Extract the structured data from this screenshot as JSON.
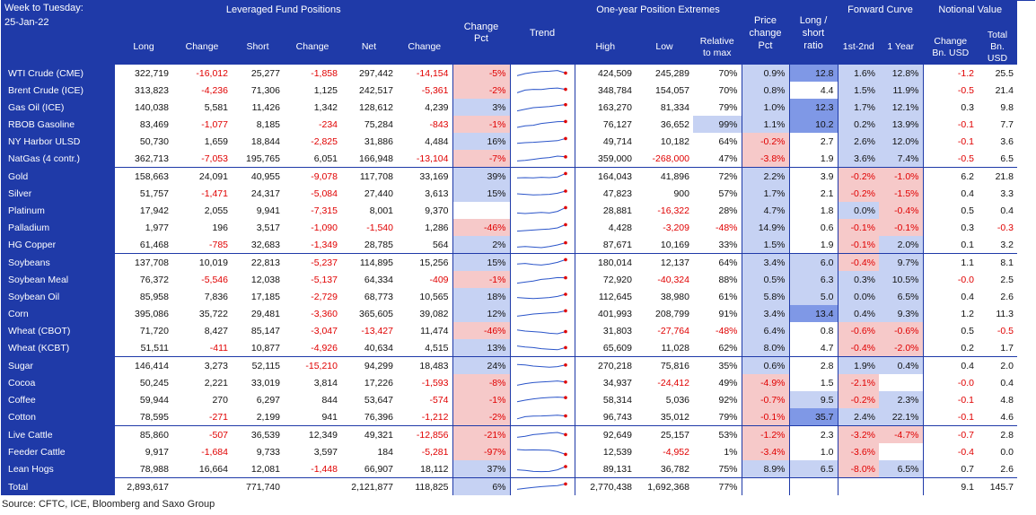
{
  "header": {
    "week_label": "Week to Tuesday:",
    "date": "25-Jan-22",
    "group_leveraged": "Leveraged Fund Positions",
    "group_extremes": "One-year Position Extremes",
    "group_price": "Price change Pct",
    "group_ratio": "Long / short ratio",
    "group_curve": "Forward Curve",
    "group_notional": "Notional Value",
    "col_long": "Long",
    "col_change": "Change",
    "col_short": "Short",
    "col_change2": "Change",
    "col_net": "Net",
    "col_change3": "Change",
    "col_change_pct": "Change Pct",
    "col_trend": "Trend",
    "col_high": "High",
    "col_low": "Low",
    "col_relmax": "Relative to max",
    "col_curve1": "1st-2nd",
    "col_curve2": "1 Year",
    "col_nchange": "Change Bn. USD",
    "col_ntotal": "Total Bn. USD"
  },
  "chart_data": {
    "type": "table",
    "columns": [
      "Commodity",
      "Long",
      "Change",
      "Short",
      "Change",
      "Net",
      "Change",
      "Change Pct",
      "Trend",
      "High",
      "Low",
      "Relative to max",
      "Price change Pct",
      "Long / short ratio",
      "1st-2nd",
      "1 Year",
      "Change Bn. USD",
      "Total Bn. USD"
    ],
    "rows": [
      {
        "name": "WTI Crude (CME)",
        "long": "322,719",
        "chg_long": "-16,012",
        "short": "25,277",
        "chg_short": "-1,858",
        "net": "297,442",
        "chg_net": "-14,154",
        "chg_pct": "-5%",
        "high": "424,509",
        "low": "245,289",
        "rel": "70%",
        "price": "0.9%",
        "ratio": "12.8",
        "c12": "1.6%",
        "c1y": "12.8%",
        "nchg": "-1.2",
        "ntot": "25.5",
        "trend": [
          0.3,
          0.5,
          0.62,
          0.68,
          0.72,
          0.78,
          0.55
        ],
        "hl": {
          "chg_pct": "pink",
          "price": "blue",
          "ratio": "dblue",
          "c12": "blue",
          "c1y": "blue"
        }
      },
      {
        "name": "Brent Crude (ICE)",
        "long": "313,823",
        "chg_long": "-4,236",
        "short": "71,306",
        "chg_short": "1,125",
        "net": "242,517",
        "chg_net": "-5,361",
        "chg_pct": "-2%",
        "high": "348,784",
        "low": "154,057",
        "rel": "70%",
        "price": "0.8%",
        "ratio": "4.4",
        "c12": "1.5%",
        "c1y": "11.9%",
        "nchg": "-0.5",
        "ntot": "21.4",
        "trend": [
          0.3,
          0.55,
          0.62,
          0.6,
          0.7,
          0.74,
          0.62
        ],
        "hl": {
          "chg_pct": "pink",
          "price": "blue",
          "c12": "blue",
          "c1y": "blue"
        }
      },
      {
        "name": "Gas Oil (ICE)",
        "long": "140,038",
        "chg_long": "5,581",
        "short": "11,426",
        "chg_short": "1,342",
        "net": "128,612",
        "chg_net": "4,239",
        "chg_pct": "3%",
        "high": "163,270",
        "low": "81,334",
        "rel": "79%",
        "price": "1.0%",
        "ratio": "12.3",
        "c12": "1.7%",
        "c1y": "12.1%",
        "nchg": "0.3",
        "ntot": "9.8",
        "trend": [
          0.2,
          0.35,
          0.5,
          0.55,
          0.6,
          0.7,
          0.78
        ],
        "hl": {
          "chg_pct": "blue",
          "price": "blue",
          "ratio": "dblue",
          "c12": "blue",
          "c1y": "blue"
        }
      },
      {
        "name": "RBOB Gasoline",
        "long": "83,469",
        "chg_long": "-1,077",
        "short": "8,185",
        "chg_short": "-234",
        "net": "75,284",
        "chg_net": "-843",
        "chg_pct": "-1%",
        "high": "76,127",
        "low": "36,652",
        "rel": "99%",
        "price": "1.1%",
        "ratio": "10.2",
        "c12": "0.2%",
        "c1y": "13.9%",
        "nchg": "-0.1",
        "ntot": "7.7",
        "trend": [
          0.25,
          0.4,
          0.45,
          0.62,
          0.7,
          0.78,
          0.8
        ],
        "hl": {
          "chg_pct": "pink",
          "rel": "blue",
          "price": "blue",
          "ratio": "dblue",
          "c12": "blue",
          "c1y": "blue"
        }
      },
      {
        "name": "NY Harbor ULSD",
        "long": "50,730",
        "chg_long": "1,659",
        "short": "18,844",
        "chg_short": "-2,825",
        "net": "31,886",
        "chg_net": "4,484",
        "chg_pct": "16%",
        "high": "49,714",
        "low": "10,182",
        "rel": "64%",
        "price": "-0.2%",
        "ratio": "2.7",
        "c12": "2.6%",
        "c1y": "12.0%",
        "nchg": "-0.1",
        "ntot": "3.6",
        "trend": [
          0.35,
          0.42,
          0.45,
          0.5,
          0.55,
          0.6,
          0.8
        ],
        "hl": {
          "chg_pct": "blue",
          "price": "pink",
          "c12": "blue",
          "c1y": "blue"
        }
      },
      {
        "name": "NatGas (4 contr.)",
        "long": "362,713",
        "chg_long": "-7,053",
        "short": "195,765",
        "chg_short": "6,051",
        "net": "166,948",
        "chg_net": "-13,104",
        "chg_pct": "-7%",
        "high": "359,000",
        "low": "-268,000",
        "rel": "47%",
        "price": "-3.8%",
        "ratio": "1.9",
        "c12": "3.6%",
        "c1y": "7.4%",
        "nchg": "-0.5",
        "ntot": "6.5",
        "trend": [
          0.3,
          0.35,
          0.45,
          0.55,
          0.62,
          0.75,
          0.68
        ],
        "hl": {
          "chg_pct": "pink",
          "price": "pink",
          "c12": "blue",
          "c1y": "blue"
        }
      },
      {
        "name": "Gold",
        "long": "158,663",
        "chg_long": "24,091",
        "short": "40,955",
        "chg_short": "-9,078",
        "net": "117,708",
        "chg_net": "33,169",
        "chg_pct": "39%",
        "high": "164,043",
        "low": "41,896",
        "rel": "72%",
        "price": "2.2%",
        "ratio": "3.9",
        "c12": "-0.2%",
        "c1y": "-1.0%",
        "nchg": "6.2",
        "ntot": "21.8",
        "trend": [
          0.4,
          0.42,
          0.4,
          0.45,
          0.42,
          0.48,
          0.8
        ],
        "hl": {
          "chg_pct": "blue",
          "price": "blue",
          "c12": "pink",
          "c1y": "pink"
        },
        "group_start": true
      },
      {
        "name": "Silver",
        "long": "51,757",
        "chg_long": "-1,471",
        "short": "24,317",
        "chg_short": "-5,084",
        "net": "27,440",
        "chg_net": "3,613",
        "chg_pct": "15%",
        "high": "47,823",
        "low": "900",
        "rel": "57%",
        "price": "1.7%",
        "ratio": "2.1",
        "c12": "-0.2%",
        "c1y": "-1.5%",
        "nchg": "0.4",
        "ntot": "3.3",
        "trend": [
          0.5,
          0.45,
          0.4,
          0.42,
          0.45,
          0.55,
          0.75
        ],
        "hl": {
          "chg_pct": "blue",
          "price": "blue",
          "c12": "pink",
          "c1y": "pink"
        }
      },
      {
        "name": "Platinum",
        "long": "17,942",
        "chg_long": "2,055",
        "short": "9,941",
        "chg_short": "-7,315",
        "net": "8,001",
        "chg_net": "9,370",
        "chg_pct": "",
        "high": "28,881",
        "low": "-16,322",
        "rel": "28%",
        "price": "4.7%",
        "ratio": "1.8",
        "c12": "0.0%",
        "c1y": "-0.4%",
        "nchg": "0.5",
        "ntot": "0.4",
        "trend": [
          0.3,
          0.25,
          0.3,
          0.35,
          0.3,
          0.45,
          0.8
        ],
        "hl": {
          "price": "blue",
          "c12": "blue",
          "c1y": "pink"
        }
      },
      {
        "name": "Palladium",
        "long": "1,977",
        "chg_long": "196",
        "short": "3,517",
        "chg_short": "-1,090",
        "net": "-1,540",
        "chg_net": "1,286",
        "chg_pct": "-46%",
        "high": "4,428",
        "low": "-3,209",
        "rel": "-48%",
        "price": "14.9%",
        "ratio": "0.6",
        "c12": "-0.1%",
        "c1y": "-0.1%",
        "nchg": "0.3",
        "ntot": "-0.3",
        "trend": [
          0.2,
          0.25,
          0.3,
          0.35,
          0.4,
          0.5,
          0.8
        ],
        "hl": {
          "chg_pct": "pink",
          "price": "blue",
          "c12": "pink",
          "c1y": "pink"
        }
      },
      {
        "name": "HG Copper",
        "long": "61,468",
        "chg_long": "-785",
        "short": "32,683",
        "chg_short": "-1,349",
        "net": "28,785",
        "chg_net": "564",
        "chg_pct": "2%",
        "high": "87,671",
        "low": "10,169",
        "rel": "33%",
        "price": "1.5%",
        "ratio": "1.9",
        "c12": "-0.1%",
        "c1y": "2.0%",
        "nchg": "0.1",
        "ntot": "3.2",
        "trend": [
          0.3,
          0.35,
          0.3,
          0.25,
          0.35,
          0.5,
          0.7
        ],
        "hl": {
          "chg_pct": "blue",
          "price": "blue",
          "c12": "pink",
          "c1y": "blue"
        }
      },
      {
        "name": "Soybeans",
        "long": "137,708",
        "chg_long": "10,019",
        "short": "22,813",
        "chg_short": "-5,237",
        "net": "114,895",
        "chg_net": "15,256",
        "chg_pct": "15%",
        "high": "180,014",
        "low": "12,137",
        "rel": "64%",
        "price": "3.4%",
        "ratio": "6.0",
        "c12": "-0.4%",
        "c1y": "9.7%",
        "nchg": "1.1",
        "ntot": "8.1",
        "trend": [
          0.4,
          0.45,
          0.35,
          0.3,
          0.4,
          0.55,
          0.8
        ],
        "hl": {
          "chg_pct": "blue",
          "price": "blue",
          "ratio": "blue",
          "c12": "pink",
          "c1y": "blue"
        },
        "group_start": true
      },
      {
        "name": "Soybean Meal",
        "long": "76,372",
        "chg_long": "-5,546",
        "short": "12,038",
        "chg_short": "-5,137",
        "net": "64,334",
        "chg_net": "-409",
        "chg_pct": "-1%",
        "high": "72,920",
        "low": "-40,324",
        "rel": "88%",
        "price": "0.5%",
        "ratio": "6.3",
        "c12": "0.3%",
        "c1y": "10.5%",
        "nchg": "-0.0",
        "ntot": "2.5",
        "trend": [
          0.2,
          0.3,
          0.4,
          0.55,
          0.62,
          0.72,
          0.7
        ],
        "hl": {
          "chg_pct": "pink",
          "price": "blue",
          "ratio": "blue",
          "c12": "blue",
          "c1y": "blue"
        }
      },
      {
        "name": "Soybean Oil",
        "long": "85,958",
        "chg_long": "7,836",
        "short": "17,185",
        "chg_short": "-2,729",
        "net": "68,773",
        "chg_net": "10,565",
        "chg_pct": "18%",
        "high": "112,645",
        "low": "38,980",
        "rel": "61%",
        "price": "5.8%",
        "ratio": "5.0",
        "c12": "0.0%",
        "c1y": "6.5%",
        "nchg": "0.4",
        "ntot": "2.6",
        "trend": [
          0.45,
          0.4,
          0.35,
          0.4,
          0.45,
          0.55,
          0.75
        ],
        "hl": {
          "chg_pct": "blue",
          "price": "blue",
          "ratio": "blue",
          "c12": "blue",
          "c1y": "blue"
        }
      },
      {
        "name": "Corn",
        "long": "395,086",
        "chg_long": "35,722",
        "short": "29,481",
        "chg_short": "-3,360",
        "net": "365,605",
        "chg_net": "39,082",
        "chg_pct": "12%",
        "high": "401,993",
        "low": "208,799",
        "rel": "91%",
        "price": "3.4%",
        "ratio": "13.4",
        "c12": "0.4%",
        "c1y": "9.3%",
        "nchg": "1.2",
        "ntot": "11.3",
        "trend": [
          0.3,
          0.4,
          0.5,
          0.55,
          0.6,
          0.65,
          0.8
        ],
        "hl": {
          "chg_pct": "blue",
          "price": "blue",
          "ratio": "dblue",
          "c12": "blue",
          "c1y": "blue"
        }
      },
      {
        "name": "Wheat (CBOT)",
        "long": "71,720",
        "chg_long": "8,427",
        "short": "85,147",
        "chg_short": "-3,047",
        "net": "-13,427",
        "chg_net": "11,474",
        "chg_pct": "-46%",
        "high": "31,803",
        "low": "-27,764",
        "rel": "-48%",
        "price": "6.4%",
        "ratio": "0.8",
        "c12": "-0.6%",
        "c1y": "-0.6%",
        "nchg": "0.5",
        "ntot": "-0.5",
        "trend": [
          0.6,
          0.5,
          0.45,
          0.4,
          0.3,
          0.25,
          0.45
        ],
        "hl": {
          "chg_pct": "pink",
          "price": "blue",
          "c12": "pink",
          "c1y": "pink"
        }
      },
      {
        "name": "Wheat (KCBT)",
        "long": "51,511",
        "chg_long": "-411",
        "short": "10,877",
        "chg_short": "-4,926",
        "net": "40,634",
        "chg_net": "4,515",
        "chg_pct": "13%",
        "high": "65,609",
        "low": "11,028",
        "rel": "62%",
        "price": "8.0%",
        "ratio": "4.7",
        "c12": "-0.4%",
        "c1y": "-2.0%",
        "nchg": "0.2",
        "ntot": "1.7",
        "trend": [
          0.7,
          0.6,
          0.55,
          0.45,
          0.4,
          0.35,
          0.55
        ],
        "hl": {
          "chg_pct": "blue",
          "price": "blue",
          "c12": "pink",
          "c1y": "pink"
        }
      },
      {
        "name": "Sugar",
        "long": "146,414",
        "chg_long": "3,273",
        "short": "52,115",
        "chg_short": "-15,210",
        "net": "94,299",
        "chg_net": "18,483",
        "chg_pct": "24%",
        "high": "270,218",
        "low": "75,816",
        "rel": "35%",
        "price": "0.6%",
        "ratio": "2.8",
        "c12": "1.9%",
        "c1y": "0.4%",
        "nchg": "0.4",
        "ntot": "2.0",
        "trend": [
          0.65,
          0.6,
          0.5,
          0.45,
          0.4,
          0.45,
          0.6
        ],
        "hl": {
          "chg_pct": "blue",
          "price": "blue",
          "c12": "blue",
          "c1y": "blue"
        },
        "group_start": true
      },
      {
        "name": "Cocoa",
        "long": "50,245",
        "chg_long": "2,221",
        "short": "33,019",
        "chg_short": "3,814",
        "net": "17,226",
        "chg_net": "-1,593",
        "chg_pct": "-8%",
        "high": "34,937",
        "low": "-24,412",
        "rel": "49%",
        "price": "-4.9%",
        "ratio": "1.5",
        "c12": "-2.1%",
        "c1y": "",
        "nchg": "-0.0",
        "ntot": "0.4",
        "trend": [
          0.3,
          0.45,
          0.55,
          0.6,
          0.65,
          0.7,
          0.6
        ],
        "hl": {
          "chg_pct": "pink",
          "price": "pink",
          "c12": "pink",
          "c1y": "white"
        }
      },
      {
        "name": "Coffee",
        "long": "59,944",
        "chg_long": "270",
        "short": "6,297",
        "chg_short": "844",
        "net": "53,647",
        "chg_net": "-574",
        "chg_pct": "-1%",
        "high": "58,314",
        "low": "5,036",
        "rel": "92%",
        "price": "-0.7%",
        "ratio": "9.5",
        "c12": "-0.2%",
        "c1y": "2.3%",
        "nchg": "-0.1",
        "ntot": "4.8",
        "trend": [
          0.35,
          0.5,
          0.62,
          0.7,
          0.75,
          0.78,
          0.74
        ],
        "hl": {
          "chg_pct": "pink",
          "price": "pink",
          "ratio": "blue",
          "c12": "pink",
          "c1y": "blue"
        }
      },
      {
        "name": "Cotton",
        "long": "78,595",
        "chg_long": "-271",
        "short": "2,199",
        "chg_short": "941",
        "net": "76,396",
        "chg_net": "-1,212",
        "chg_pct": "-2%",
        "high": "96,743",
        "low": "35,012",
        "rel": "79%",
        "price": "-0.1%",
        "ratio": "35.7",
        "c12": "2.4%",
        "c1y": "22.1%",
        "nchg": "-0.1",
        "ntot": "4.6",
        "trend": [
          0.35,
          0.55,
          0.6,
          0.62,
          0.65,
          0.68,
          0.62
        ],
        "hl": {
          "chg_pct": "pink",
          "price": "pink",
          "ratio": "dblue",
          "c12": "blue",
          "c1y": "blue"
        }
      },
      {
        "name": "Live Cattle",
        "long": "85,860",
        "chg_long": "-507",
        "short": "36,539",
        "chg_short": "12,349",
        "net": "49,321",
        "chg_net": "-12,856",
        "chg_pct": "-21%",
        "high": "92,649",
        "low": "25,157",
        "rel": "53%",
        "price": "-1.2%",
        "ratio": "2.3",
        "c12": "-3.2%",
        "c1y": "-4.7%",
        "nchg": "-0.7",
        "ntot": "2.8",
        "trend": [
          0.3,
          0.4,
          0.55,
          0.62,
          0.7,
          0.75,
          0.55
        ],
        "hl": {
          "chg_pct": "pink",
          "price": "pink",
          "c12": "pink",
          "c1y": "pink"
        },
        "group_start": true
      },
      {
        "name": "Feeder Cattle",
        "long": "9,917",
        "chg_long": "-1,684",
        "short": "9,733",
        "chg_short": "3,597",
        "net": "184",
        "chg_net": "-5,281",
        "chg_pct": "-97%",
        "high": "12,539",
        "low": "-4,952",
        "rel": "1%",
        "price": "-3.4%",
        "ratio": "1.0",
        "c12": "-3.6%",
        "c1y": "",
        "nchg": "-0.4",
        "ntot": "0.0",
        "trend": [
          0.75,
          0.7,
          0.72,
          0.7,
          0.68,
          0.55,
          0.3
        ],
        "hl": {
          "chg_pct": "pink",
          "price": "pink",
          "c12": "pink",
          "c1y": "white"
        }
      },
      {
        "name": "Lean Hogs",
        "long": "78,988",
        "chg_long": "16,664",
        "short": "12,081",
        "chg_short": "-1,448",
        "net": "66,907",
        "chg_net": "18,112",
        "chg_pct": "37%",
        "high": "89,131",
        "low": "36,782",
        "rel": "75%",
        "price": "8.9%",
        "ratio": "6.5",
        "c12": "-8.0%",
        "c1y": "6.5%",
        "nchg": "0.7",
        "ntot": "2.6",
        "trend": [
          0.45,
          0.4,
          0.3,
          0.28,
          0.3,
          0.45,
          0.75
        ],
        "hl": {
          "chg_pct": "blue",
          "price": "blue",
          "ratio": "blue",
          "c12": "pink",
          "c1y": "blue"
        }
      }
    ],
    "total": {
      "name": "Total",
      "long": "2,893,617",
      "chg_long": "",
      "short": "771,740",
      "chg_short": "",
      "net": "2,121,877",
      "chg_net": "118,825",
      "chg_pct": "6%",
      "high": "2,770,438",
      "low": "1,692,368",
      "rel": "77%",
      "price": "",
      "ratio": "",
      "c12": "",
      "c1y": "",
      "nchg": "9.1",
      "ntot": "145.7",
      "trend": [
        0.3,
        0.4,
        0.48,
        0.55,
        0.6,
        0.65,
        0.8
      ],
      "hl": {
        "chg_pct": "blue"
      }
    },
    "colors": {
      "header_bg": "#1f3aa8",
      "positive_highlight": "#c6d2f3",
      "negative_highlight": "#f6c9c9",
      "strong_highlight": "#7f98e6",
      "negative_text": "#e00000",
      "spark_line": "#2b55c9",
      "spark_marker": "#e00000"
    }
  },
  "source": "Source: CFTC, ICE, Bloomberg and Saxo Group"
}
